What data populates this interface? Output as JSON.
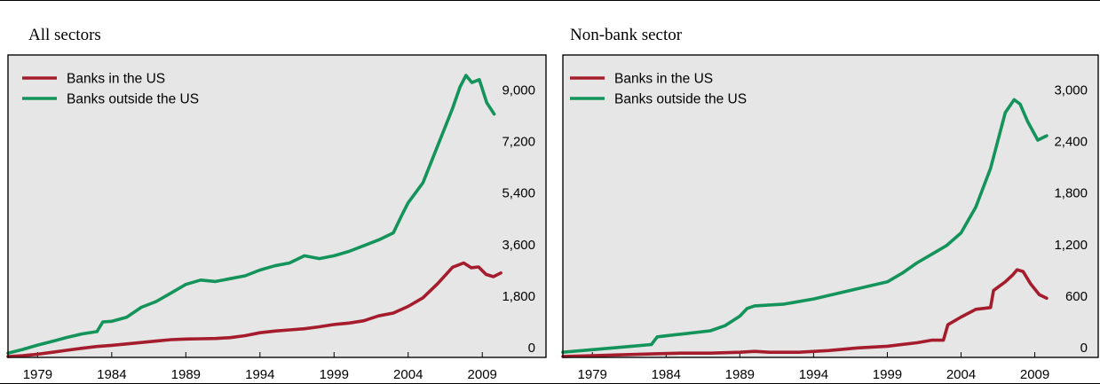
{
  "chart_data": [
    {
      "type": "line",
      "title": "All sectors",
      "xlabel": "",
      "ylabel": "",
      "x_ticks": [
        "1979",
        "1984",
        "1989",
        "1994",
        "1999",
        "2004",
        "2009"
      ],
      "y_ticks": [
        "0",
        "1,800",
        "3,600",
        "5,400",
        "7,200",
        "9,000"
      ],
      "xlim": [
        1977.0,
        2013.3
      ],
      "ylim": [
        0,
        10500
      ],
      "grid": false,
      "legend_position": "top-left",
      "series": [
        {
          "name": "Banks in the US",
          "color": "#a51d2d",
          "x": [
            1977.0,
            1978,
            1979,
            1980,
            1981,
            1982,
            1983,
            1984,
            1985,
            1986,
            1987,
            1988,
            1989,
            1990,
            1991,
            1992,
            1993,
            1994,
            1995,
            1996,
            1997,
            1998,
            1999,
            2000,
            2001,
            2002,
            2003,
            2004,
            2005,
            2006,
            2007,
            2007.75,
            2008.25,
            2008.75,
            2009.25,
            2009.75,
            2010.25
          ],
          "y": [
            30,
            60,
            110,
            180,
            250,
            320,
            380,
            420,
            470,
            520,
            570,
            620,
            640,
            650,
            660,
            690,
            760,
            860,
            920,
            960,
            1000,
            1070,
            1150,
            1200,
            1280,
            1450,
            1550,
            1780,
            2080,
            2580,
            3150,
            3300,
            3130,
            3160,
            2900,
            2820,
            2950
          ]
        },
        {
          "name": "Banks outside the US",
          "color": "#14935a",
          "x": [
            1977.0,
            1978,
            1979,
            1980,
            1981,
            1982,
            1983,
            1983.4,
            1984,
            1985,
            1986,
            1987,
            1988,
            1989,
            1990,
            1991,
            1992,
            1993,
            1994,
            1995,
            1996,
            1997,
            1998,
            1999,
            2000,
            2001,
            2002,
            2003,
            2003.6,
            2004,
            2005,
            2006,
            2007,
            2007.5,
            2007.9,
            2008.3,
            2008.8,
            2009.3,
            2009.8
          ],
          "y": [
            150,
            280,
            430,
            560,
            700,
            820,
            900,
            1240,
            1260,
            1400,
            1750,
            1950,
            2250,
            2550,
            2700,
            2650,
            2750,
            2850,
            3050,
            3200,
            3300,
            3550,
            3450,
            3550,
            3700,
            3900,
            4100,
            4350,
            5000,
            5400,
            6100,
            7400,
            8700,
            9450,
            9850,
            9600,
            9700,
            8900,
            8500
          ]
        }
      ]
    },
    {
      "type": "line",
      "title": "Non-bank sector",
      "xlabel": "",
      "ylabel": "",
      "x_ticks": [
        "1979",
        "1984",
        "1989",
        "1994",
        "1999",
        "2004",
        "2009"
      ],
      "y_ticks": [
        "0",
        "600",
        "1,200",
        "1,800",
        "2,400",
        "3,000"
      ],
      "xlim": [
        1977.0,
        2013.3
      ],
      "ylim": [
        0,
        3500
      ],
      "grid": false,
      "legend_position": "top-left",
      "series": [
        {
          "name": "Banks in the US",
          "color": "#a51d2d",
          "x": [
            1977.0,
            1979,
            1981,
            1983,
            1985,
            1987,
            1989,
            1990,
            1991,
            1993,
            1995,
            1997,
            1999,
            2001,
            2002,
            2002.8,
            2003.1,
            2004,
            2005,
            2006,
            2006.2,
            2007,
            2007.5,
            2007.8,
            2008.2,
            2008.7,
            2009.3,
            2009.8
          ],
          "y": [
            10,
            20,
            30,
            40,
            50,
            50,
            60,
            70,
            60,
            60,
            80,
            110,
            130,
            170,
            200,
            200,
            380,
            470,
            560,
            580,
            780,
            880,
            960,
            1020,
            1000,
            860,
            730,
            690
          ]
        },
        {
          "name": "Banks outside the US",
          "color": "#14935a",
          "x": [
            1977.0,
            1979,
            1981,
            1983,
            1983.4,
            1985,
            1987,
            1988,
            1989,
            1989.5,
            1990,
            1992,
            1994,
            1996,
            1998,
            1999,
            2000,
            2001,
            2002,
            2003,
            2004,
            2005,
            2006,
            2007,
            2007.6,
            2008,
            2008.5,
            2009.2,
            2009.8
          ],
          "y": [
            60,
            90,
            120,
            150,
            240,
            270,
            310,
            370,
            480,
            570,
            600,
            620,
            680,
            760,
            840,
            880,
            980,
            1100,
            1200,
            1300,
            1450,
            1750,
            2200,
            2850,
            3000,
            2950,
            2750,
            2530,
            2580
          ]
        }
      ]
    }
  ]
}
